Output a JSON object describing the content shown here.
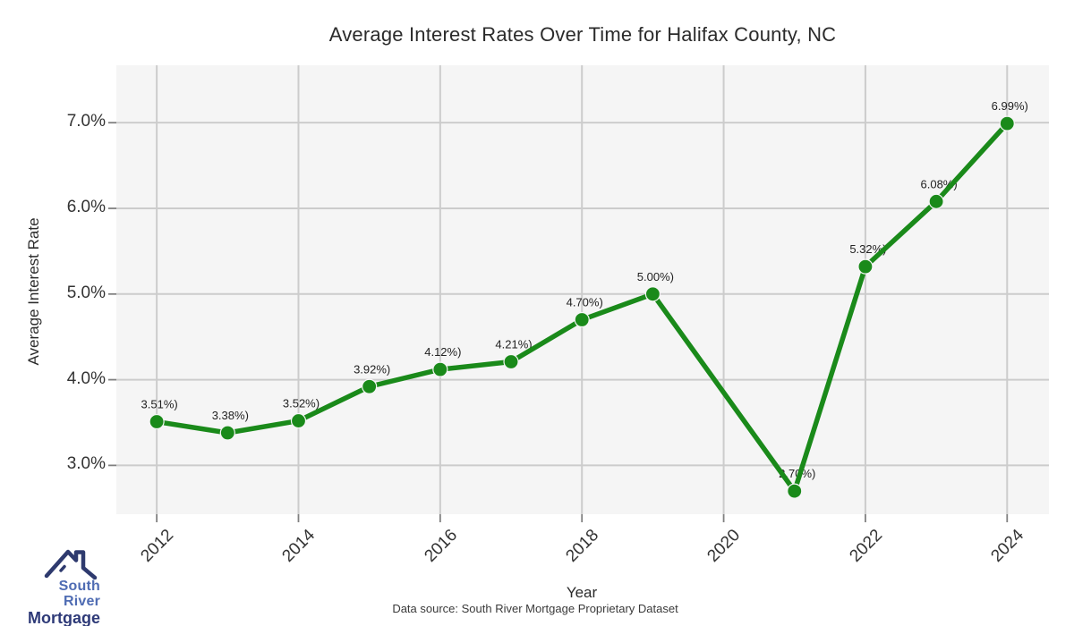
{
  "title": "Average Interest Rates Over Time for Halifax County, NC",
  "chart_data": {
    "type": "line",
    "title": "Average Interest Rates Over Time for Halifax County, NC",
    "xlabel": "Year",
    "ylabel": "Average Interest Rate",
    "x": [
      2012,
      2013,
      2014,
      2015,
      2016,
      2017,
      2018,
      2019,
      2021,
      2022,
      2023,
      2024
    ],
    "values": [
      3.51,
      3.38,
      3.52,
      3.92,
      4.12,
      4.21,
      4.7,
      5.0,
      2.7,
      5.32,
      6.08,
      6.99
    ],
    "point_labels": [
      "3.51%)",
      "3.38%)",
      "3.52%)",
      "3.92%)",
      "4.12%)",
      "4.21%)",
      "4.70%)",
      "5.00%)",
      "2.70%)",
      "5.32%)",
      "6.08%)",
      "6.99%)"
    ],
    "missing_years": [
      2020
    ],
    "xticks": [
      2012,
      2014,
      2016,
      2018,
      2020,
      2022,
      2024
    ],
    "yticks": [
      {
        "value": 7.0,
        "label": "7.0%"
      },
      {
        "value": 6.0,
        "label": "6.0%"
      },
      {
        "value": 5.0,
        "label": "5.0%"
      },
      {
        "value": 4.0,
        "label": "4.0%"
      },
      {
        "value": 3.0,
        "label": "3.0%"
      }
    ],
    "xlim": [
      2011.43,
      2024.59
    ],
    "ylim": [
      2.43,
      7.67
    ],
    "grid": true,
    "legend": "none",
    "colors": {
      "line": "#1a8a1a",
      "marker": "#1a8a1a",
      "marker_edge": "#f5f5f5",
      "plot_bg": "#f5f5f5",
      "grid": "#cccccc",
      "tick_mark": "#808080",
      "point_label_text": "#222222",
      "axis_text": "#333333"
    }
  },
  "footer": {
    "source": "Data source: South River Mortgage Proprietary Dataset"
  },
  "logo": {
    "line1": "South River",
    "line2": "Mortgage",
    "color_primary": "#4f6cb3",
    "color_dark": "#2e3a78"
  }
}
